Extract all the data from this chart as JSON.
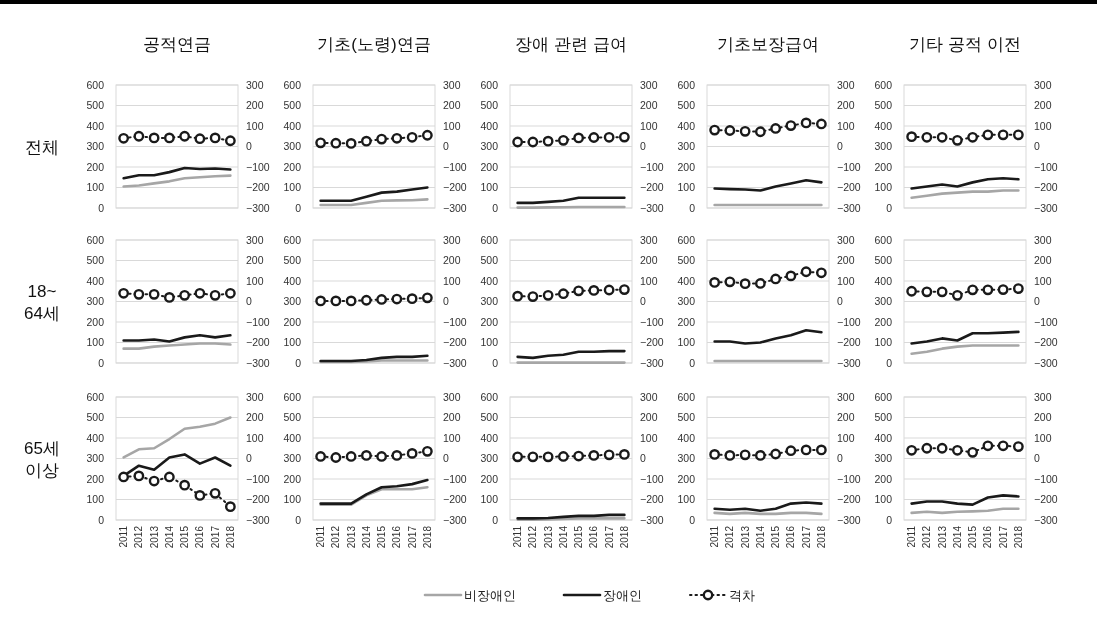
{
  "chart_data": [
    {
      "type": "line",
      "title": "공적연금",
      "ylabel": "전체",
      "legend": "bottom",
      "categories": [
        null,
        null,
        null,
        null,
        null,
        null,
        null,
        null
      ],
      "grid": "y",
      "ylim": [
        0,
        600
      ],
      "yticks": [
        0,
        100,
        200,
        300,
        400,
        500,
        600
      ],
      "y2lim": [
        -300,
        300
      ],
      "y2ticks": [
        {
          "value": -300,
          "label": "−300"
        },
        {
          "value": -200,
          "label": "−200"
        },
        {
          "value": -100,
          "label": "−100"
        },
        0,
        100,
        200,
        300
      ],
      "series": [
        {
          "name": "비장애인",
          "color": "#a6a6a6",
          "values": [
            105,
            110,
            120,
            130,
            145,
            150,
            155,
            158
          ]
        },
        {
          "name": "장애인",
          "color": "#1a1a1a",
          "values": [
            145,
            160,
            160,
            175,
            195,
            190,
            193,
            188
          ]
        },
        {
          "name": "격차",
          "color": "#1a1a1a",
          "axis": "y2",
          "line_style": "dotted",
          "marker": "circle",
          "values": [
            40,
            50,
            42,
            42,
            50,
            38,
            42,
            28
          ]
        }
      ]
    },
    {
      "type": "line",
      "title": "기초(노령)연금",
      "categories": [
        null,
        null,
        null,
        null,
        null,
        null,
        null,
        null
      ],
      "grid": "y",
      "ylim": [
        0,
        600
      ],
      "yticks": [
        0,
        100,
        200,
        300,
        400,
        500,
        600
      ],
      "y2lim": [
        -300,
        300
      ],
      "y2ticks": [
        {
          "value": -300,
          "label": "−300"
        },
        {
          "value": -200,
          "label": "−200"
        },
        {
          "value": -100,
          "label": "−100"
        },
        0,
        100,
        200,
        300
      ],
      "series": [
        {
          "color": "#a6a6a6",
          "values": [
            15,
            15,
            15,
            25,
            35,
            37,
            38,
            42
          ]
        },
        {
          "color": "#1a1a1a",
          "values": [
            35,
            35,
            35,
            55,
            75,
            80,
            90,
            100
          ]
        },
        {
          "color": "#1a1a1a",
          "axis": "y2",
          "line_style": "dotted",
          "marker": "circle",
          "values": [
            18,
            16,
            15,
            26,
            36,
            40,
            45,
            55
          ]
        }
      ]
    },
    {
      "type": "line",
      "title": "장애 관련 급여",
      "categories": [
        null,
        null,
        null,
        null,
        null,
        null,
        null,
        null
      ],
      "grid": "y",
      "ylim": [
        0,
        600
      ],
      "yticks": [
        0,
        100,
        200,
        300,
        400,
        500,
        600
      ],
      "y2lim": [
        -300,
        300
      ],
      "y2ticks": [
        {
          "value": -300,
          "label": "−300"
        },
        {
          "value": -200,
          "label": "−200"
        },
        {
          "value": -100,
          "label": "−100"
        },
        0,
        100,
        200,
        300
      ],
      "series": [
        {
          "color": "#a6a6a6",
          "values": [
            2,
            2,
            3,
            4,
            5,
            5,
            5,
            5
          ]
        },
        {
          "color": "#1a1a1a",
          "values": [
            25,
            25,
            30,
            35,
            50,
            50,
            50,
            50
          ]
        },
        {
          "color": "#1a1a1a",
          "axis": "y2",
          "line_style": "dotted",
          "marker": "circle",
          "values": [
            22,
            22,
            26,
            30,
            42,
            44,
            45,
            46
          ]
        }
      ]
    },
    {
      "type": "line",
      "title": "기초보장급여",
      "categories": [
        null,
        null,
        null,
        null,
        null,
        null,
        null,
        null
      ],
      "grid": "y",
      "ylim": [
        0,
        600
      ],
      "yticks": [
        0,
        100,
        200,
        300,
        400,
        500,
        600
      ],
      "y2lim": [
        -300,
        300
      ],
      "y2ticks": [
        {
          "value": -300,
          "label": "−300"
        },
        {
          "value": -200,
          "label": "−200"
        },
        {
          "value": -100,
          "label": "−100"
        },
        0,
        100,
        200,
        300
      ],
      "series": [
        {
          "color": "#a6a6a6",
          "values": [
            15,
            15,
            15,
            15,
            15,
            15,
            15,
            15
          ]
        },
        {
          "color": "#1a1a1a",
          "values": [
            95,
            92,
            90,
            85,
            105,
            120,
            135,
            125
          ]
        },
        {
          "color": "#1a1a1a",
          "axis": "y2",
          "line_style": "dotted",
          "marker": "circle",
          "values": [
            80,
            78,
            74,
            72,
            88,
            102,
            115,
            110
          ]
        }
      ]
    },
    {
      "type": "line",
      "title": "기타 공적 이전",
      "categories": [
        null,
        null,
        null,
        null,
        null,
        null,
        null,
        null
      ],
      "grid": "y",
      "ylim": [
        0,
        600
      ],
      "yticks": [
        0,
        100,
        200,
        300,
        400,
        500,
        600
      ],
      "y2lim": [
        -300,
        300
      ],
      "y2ticks": [
        {
          "value": -300,
          "label": "−300"
        },
        {
          "value": -200,
          "label": "−200"
        },
        {
          "value": -100,
          "label": "−100"
        },
        0,
        100,
        200,
        300
      ],
      "series": [
        {
          "color": "#a6a6a6",
          "values": [
            50,
            60,
            70,
            75,
            80,
            80,
            85,
            85
          ]
        },
        {
          "color": "#1a1a1a",
          "values": [
            95,
            105,
            115,
            105,
            125,
            140,
            145,
            140
          ]
        },
        {
          "color": "#1a1a1a",
          "axis": "y2",
          "line_style": "dotted",
          "marker": "circle",
          "values": [
            48,
            45,
            45,
            30,
            45,
            57,
            57,
            57
          ]
        }
      ]
    },
    {
      "type": "line",
      "ylabel": "18~ 64세",
      "categories": [
        null,
        null,
        null,
        null,
        null,
        null,
        null,
        null
      ],
      "grid": "y",
      "ylim": [
        0,
        600
      ],
      "yticks": [
        0,
        100,
        200,
        300,
        400,
        500,
        600
      ],
      "y2lim": [
        -300,
        300
      ],
      "y2ticks": [
        {
          "value": -300,
          "label": "−300"
        },
        {
          "value": -200,
          "label": "−200"
        },
        {
          "value": -100,
          "label": "−100"
        },
        0,
        100,
        200,
        300
      ],
      "series": [
        {
          "color": "#a6a6a6",
          "values": [
            70,
            70,
            80,
            85,
            90,
            95,
            95,
            90
          ]
        },
        {
          "color": "#1a1a1a",
          "values": [
            110,
            110,
            115,
            105,
            125,
            135,
            125,
            135
          ]
        },
        {
          "color": "#1a1a1a",
          "axis": "y2",
          "line_style": "dotted",
          "marker": "circle",
          "values": [
            40,
            35,
            35,
            20,
            30,
            40,
            30,
            40
          ]
        }
      ]
    },
    {
      "type": "line",
      "categories": [
        null,
        null,
        null,
        null,
        null,
        null,
        null,
        null
      ],
      "grid": "y",
      "ylim": [
        0,
        600
      ],
      "yticks": [
        0,
        100,
        200,
        300,
        400,
        500,
        600
      ],
      "y2lim": [
        -300,
        300
      ],
      "y2ticks": [
        {
          "value": -300,
          "label": "−300"
        },
        {
          "value": -200,
          "label": "−200"
        },
        {
          "value": -100,
          "label": "−100"
        },
        0,
        100,
        200,
        300
      ],
      "series": [
        {
          "color": "#a6a6a6",
          "values": [
            5,
            5,
            5,
            8,
            12,
            12,
            12,
            12
          ]
        },
        {
          "color": "#1a1a1a",
          "values": [
            10,
            10,
            10,
            15,
            25,
            30,
            30,
            35
          ]
        },
        {
          "color": "#1a1a1a",
          "axis": "y2",
          "line_style": "dotted",
          "marker": "circle",
          "values": [
            3,
            3,
            3,
            6,
            10,
            12,
            14,
            18
          ]
        }
      ]
    },
    {
      "type": "line",
      "categories": [
        null,
        null,
        null,
        null,
        null,
        null,
        null,
        null
      ],
      "grid": "y",
      "ylim": [
        0,
        600
      ],
      "yticks": [
        0,
        100,
        200,
        300,
        400,
        500,
        600
      ],
      "y2lim": [
        -300,
        300
      ],
      "y2ticks": [
        {
          "value": -300,
          "label": "−300"
        },
        {
          "value": -200,
          "label": "−200"
        },
        {
          "value": -100,
          "label": "−100"
        },
        0,
        100,
        200,
        300
      ],
      "series": [
        {
          "color": "#a6a6a6",
          "values": [
            2,
            2,
            2,
            2,
            2,
            2,
            2,
            2
          ]
        },
        {
          "color": "#1a1a1a",
          "values": [
            30,
            25,
            35,
            40,
            55,
            55,
            58,
            58
          ]
        },
        {
          "color": "#1a1a1a",
          "axis": "y2",
          "line_style": "dotted",
          "marker": "circle",
          "values": [
            26,
            24,
            30,
            38,
            52,
            54,
            56,
            58
          ]
        }
      ]
    },
    {
      "type": "line",
      "categories": [
        null,
        null,
        null,
        null,
        null,
        null,
        null,
        null
      ],
      "grid": "y",
      "ylim": [
        0,
        600
      ],
      "yticks": [
        0,
        100,
        200,
        300,
        400,
        500,
        600
      ],
      "y2lim": [
        -300,
        300
      ],
      "y2ticks": [
        {
          "value": -300,
          "label": "−300"
        },
        {
          "value": -200,
          "label": "−200"
        },
        {
          "value": -100,
          "label": "−100"
        },
        0,
        100,
        200,
        300
      ],
      "series": [
        {
          "color": "#a6a6a6",
          "values": [
            10,
            10,
            10,
            10,
            10,
            10,
            10,
            10
          ]
        },
        {
          "color": "#1a1a1a",
          "values": [
            105,
            105,
            95,
            100,
            120,
            135,
            160,
            150
          ]
        },
        {
          "color": "#1a1a1a",
          "axis": "y2",
          "line_style": "dotted",
          "marker": "circle",
          "values": [
            93,
            96,
            87,
            88,
            110,
            125,
            145,
            140
          ]
        }
      ]
    },
    {
      "type": "line",
      "categories": [
        null,
        null,
        null,
        null,
        null,
        null,
        null,
        null
      ],
      "grid": "y",
      "ylim": [
        0,
        600
      ],
      "yticks": [
        0,
        100,
        200,
        300,
        400,
        500,
        600
      ],
      "y2lim": [
        -300,
        300
      ],
      "y2ticks": [
        {
          "value": -300,
          "label": "−300"
        },
        {
          "value": -200,
          "label": "−200"
        },
        {
          "value": -100,
          "label": "−100"
        },
        0,
        100,
        200,
        300
      ],
      "series": [
        {
          "color": "#a6a6a6",
          "values": [
            45,
            55,
            70,
            80,
            85,
            85,
            85,
            85
          ]
        },
        {
          "color": "#1a1a1a",
          "values": [
            95,
            105,
            120,
            110,
            145,
            145,
            148,
            152
          ]
        },
        {
          "color": "#1a1a1a",
          "axis": "y2",
          "line_style": "dotted",
          "marker": "circle",
          "values": [
            50,
            47,
            47,
            30,
            57,
            57,
            58,
            63
          ]
        }
      ]
    },
    {
      "type": "line",
      "ylabel": "65세 이상",
      "categories": [
        "2011",
        "2012",
        "2013",
        "2014",
        "2015",
        "2016",
        "2017",
        "2018"
      ],
      "grid": "y",
      "ylim": [
        0,
        600
      ],
      "yticks": [
        0,
        100,
        200,
        300,
        400,
        500,
        600
      ],
      "y2lim": [
        -300,
        300
      ],
      "y2ticks": [
        {
          "value": -300,
          "label": "−300"
        },
        {
          "value": -200,
          "label": "−200"
        },
        {
          "value": -100,
          "label": "−100"
        },
        0,
        100,
        200,
        300
      ],
      "series": [
        {
          "color": "#a6a6a6",
          "values": [
            305,
            345,
            350,
            395,
            445,
            455,
            470,
            500
          ]
        },
        {
          "color": "#1a1a1a",
          "values": [
            215,
            265,
            245,
            305,
            320,
            275,
            305,
            265
          ]
        },
        {
          "color": "#1a1a1a",
          "axis": "y2",
          "line_style": "dotted",
          "marker": "circle",
          "values": [
            -90,
            -85,
            -110,
            -90,
            -130,
            -180,
            -170,
            -235
          ]
        }
      ]
    },
    {
      "type": "line",
      "categories": [
        "2011",
        "2012",
        "2013",
        "2014",
        "2015",
        "2016",
        "2017",
        "2018"
      ],
      "grid": "y",
      "ylim": [
        0,
        600
      ],
      "yticks": [
        0,
        100,
        200,
        300,
        400,
        500,
        600
      ],
      "y2lim": [
        -300,
        300
      ],
      "y2ticks": [
        {
          "value": -300,
          "label": "−300"
        },
        {
          "value": -200,
          "label": "−200"
        },
        {
          "value": -100,
          "label": "−100"
        },
        0,
        100,
        200,
        300
      ],
      "series": [
        {
          "color": "#a6a6a6",
          "values": [
            75,
            75,
            75,
            120,
            150,
            150,
            150,
            160
          ]
        },
        {
          "color": "#1a1a1a",
          "values": [
            80,
            80,
            80,
            125,
            160,
            165,
            175,
            195
          ]
        },
        {
          "color": "#1a1a1a",
          "axis": "y2",
          "line_style": "dotted",
          "marker": "circle",
          "values": [
            10,
            5,
            10,
            15,
            10,
            15,
            25,
            35
          ]
        }
      ]
    },
    {
      "type": "line",
      "categories": [
        "2011",
        "2012",
        "2013",
        "2014",
        "2015",
        "2016",
        "2017",
        "2018"
      ],
      "grid": "y",
      "ylim": [
        0,
        600
      ],
      "yticks": [
        0,
        100,
        200,
        300,
        400,
        500,
        600
      ],
      "y2lim": [
        -300,
        300
      ],
      "y2ticks": [
        {
          "value": -300,
          "label": "−300"
        },
        {
          "value": -200,
          "label": "−200"
        },
        {
          "value": -100,
          "label": "−100"
        },
        0,
        100,
        200,
        300
      ],
      "series": [
        {
          "color": "#a6a6a6",
          "values": [
            2,
            2,
            3,
            5,
            8,
            8,
            8,
            8
          ]
        },
        {
          "color": "#1a1a1a",
          "values": [
            8,
            8,
            10,
            15,
            20,
            20,
            25,
            25
          ]
        },
        {
          "color": "#1a1a1a",
          "axis": "y2",
          "line_style": "dotted",
          "marker": "circle",
          "values": [
            8,
            8,
            8,
            10,
            12,
            15,
            18,
            20
          ]
        }
      ]
    },
    {
      "type": "line",
      "categories": [
        "2011",
        "2012",
        "2013",
        "2014",
        "2015",
        "2016",
        "2017",
        "2018"
      ],
      "grid": "y",
      "ylim": [
        0,
        600
      ],
      "yticks": [
        0,
        100,
        200,
        300,
        400,
        500,
        600
      ],
      "y2lim": [
        -300,
        300
      ],
      "y2ticks": [
        {
          "value": -300,
          "label": "−300"
        },
        {
          "value": -200,
          "label": "−200"
        },
        {
          "value": -100,
          "label": "−100"
        },
        0,
        100,
        200,
        300
      ],
      "series": [
        {
          "color": "#a6a6a6",
          "values": [
            35,
            30,
            35,
            30,
            30,
            35,
            35,
            30
          ]
        },
        {
          "color": "#1a1a1a",
          "values": [
            55,
            50,
            55,
            45,
            55,
            80,
            85,
            80
          ]
        },
        {
          "color": "#1a1a1a",
          "axis": "y2",
          "line_style": "dotted",
          "marker": "circle",
          "values": [
            20,
            15,
            18,
            15,
            22,
            38,
            42,
            42
          ]
        }
      ]
    },
    {
      "type": "line",
      "categories": [
        "2011",
        "2012",
        "2013",
        "2014",
        "2015",
        "2016",
        "2017",
        "2018"
      ],
      "grid": "y",
      "ylim": [
        0,
        600
      ],
      "yticks": [
        0,
        100,
        200,
        300,
        400,
        500,
        600
      ],
      "y2lim": [
        -300,
        300
      ],
      "y2ticks": [
        {
          "value": -300,
          "label": "−300"
        },
        {
          "value": -200,
          "label": "−200"
        },
        {
          "value": -100,
          "label": "−100"
        },
        0,
        100,
        200,
        300
      ],
      "series": [
        {
          "color": "#a6a6a6",
          "values": [
            35,
            40,
            35,
            40,
            42,
            45,
            55,
            55
          ]
        },
        {
          "color": "#1a1a1a",
          "values": [
            80,
            90,
            90,
            80,
            75,
            110,
            120,
            115
          ]
        },
        {
          "color": "#1a1a1a",
          "axis": "y2",
          "line_style": "dotted",
          "marker": "circle",
          "values": [
            40,
            50,
            50,
            40,
            30,
            62,
            62,
            58
          ]
        }
      ]
    }
  ]
}
